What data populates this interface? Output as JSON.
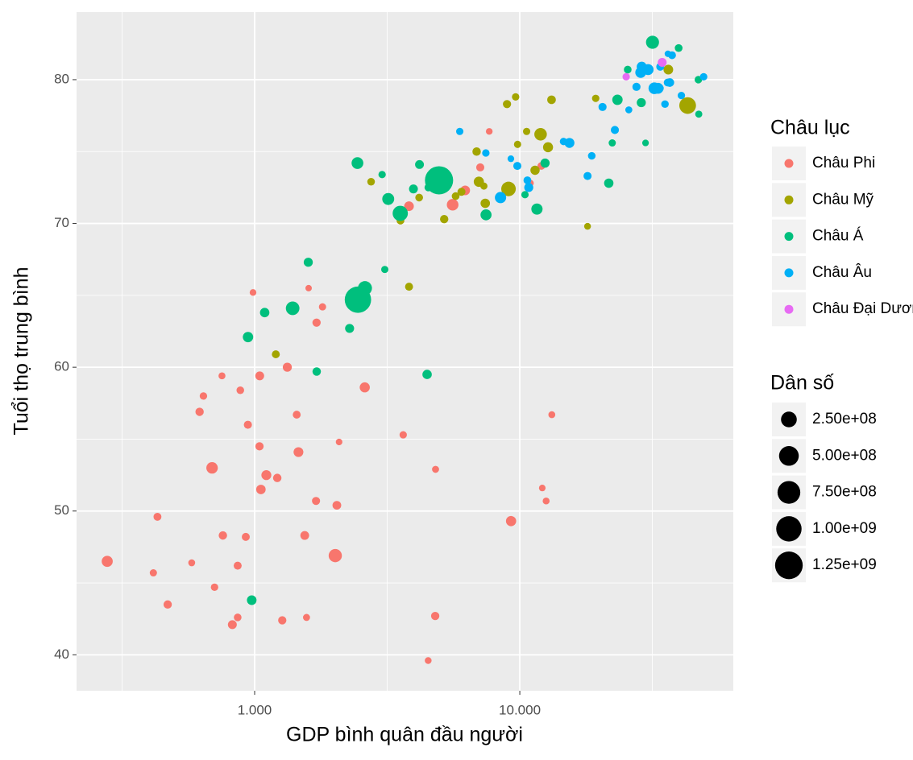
{
  "chart_data": {
    "type": "scatter",
    "x_label": "GDP bình quân đầu người",
    "y_label": "Tuổi thọ trung bình",
    "x_log": true,
    "grid": true,
    "xlim": [
      213,
      63850
    ],
    "ylim": [
      37.5,
      84.7
    ],
    "xticks": [
      {
        "value": 1000,
        "label": "1.000"
      },
      {
        "value": 10000,
        "label": "10.000"
      }
    ],
    "yticks": [
      40,
      50,
      60,
      70,
      80
    ],
    "legend": {
      "color_title": "Châu lục",
      "size_title": "Dân số",
      "sizes": [
        {
          "value": 250000000,
          "label": "2.50e+08"
        },
        {
          "value": 500000000,
          "label": "5.00e+08"
        },
        {
          "value": 750000000,
          "label": "7.50e+08"
        },
        {
          "value": 1000000000,
          "label": "1.00e+09"
        },
        {
          "value": 1250000000,
          "label": "1.25e+09"
        }
      ]
    },
    "series": [
      {
        "name": "Châu Phi",
        "color": "#F8766D",
        "x": [
          6223,
          4797,
          1441,
          12570,
          1217,
          430,
          2042,
          706,
          1704,
          986,
          278,
          3633,
          1545,
          2082,
          5581,
          12154,
          641,
          691,
          13206,
          753,
          1328,
          943,
          579,
          1463,
          1569,
          415,
          12057,
          1045,
          759,
          1043,
          1803,
          10957,
          3820,
          824,
          4811,
          620,
          2014,
          7670,
          863,
          1598,
          1712,
          863,
          926,
          9270,
          2602,
          4513,
          1107,
          883,
          7093,
          1056,
          1271,
          470
        ],
        "values": [
          72.3,
          42.7,
          56.7,
          50.7,
          52.3,
          49.6,
          50.4,
          44.7,
          50.7,
          65.2,
          46.5,
          55.3,
          48.3,
          54.8,
          71.3,
          51.6,
          58.0,
          53.0,
          56.7,
          59.4,
          60.0,
          56.0,
          46.4,
          54.1,
          42.6,
          45.7,
          74.0,
          59.4,
          48.3,
          54.5,
          64.2,
          72.8,
          71.2,
          42.1,
          52.9,
          56.9,
          46.9,
          76.4,
          46.2,
          65.5,
          63.1,
          42.6,
          48.2,
          49.3,
          58.6,
          39.6,
          52.5,
          58.4,
          73.9,
          51.5,
          42.4,
          43.5
        ],
        "sizes": [
          33300000.0,
          12400000.0,
          8100000.0,
          1600000.0,
          14300000.0,
          8400000.0,
          17700000.0,
          4400000.0,
          10200000.0,
          700000.0,
          64600000.0,
          3800000.0,
          18000000.0,
          500000.0,
          80300000.0,
          550000.0,
          4900000.0,
          76500000.0,
          1450000.0,
          1700000.0,
          22900000.0,
          9900000.0,
          1470000.0,
          35600000.0,
          2000000.0,
          3200000.0,
          6000000.0,
          19200000.0,
          13300000.0,
          12000000.0,
          3300000.0,
          1250000.0,
          33800000.0,
          20000000.0,
          2060000.0,
          12900000.0,
          135000000.0,
          800000.0,
          8900000.0,
          200000.0,
          12300000.0,
          6100000.0,
          9100000.0,
          44000000.0,
          42300000.0,
          1100000.0,
          38100000.0,
          5700000.0,
          10300000.0,
          29200000.0,
          11700000.0,
          12300000.0
        ]
      },
      {
        "name": "Châu Mỹ",
        "color": "#A3A500",
        "x": [
          12779,
          3822,
          9066,
          36319,
          13172,
          7007,
          9645,
          8948,
          6025,
          6873,
          5728,
          5186,
          1202,
          3548,
          7321,
          11978,
          2749,
          9809,
          4173,
          7409,
          19329,
          18009,
          42952,
          10611,
          11416
        ],
        "values": [
          75.3,
          65.6,
          72.4,
          80.7,
          78.6,
          72.9,
          78.8,
          78.3,
          72.2,
          75.0,
          71.9,
          70.3,
          60.9,
          70.2,
          72.6,
          76.2,
          72.9,
          75.5,
          71.8,
          71.4,
          78.7,
          69.8,
          78.2,
          76.4,
          73.7
        ],
        "sizes": [
          40300000.0,
          9100000.0,
          190000000.0,
          33400000.0,
          16300000.0,
          44200000.0,
          4100000.0,
          11400000.0,
          9300000.0,
          13800000.0,
          6900000.0,
          12600000.0,
          8500000.0,
          7500000.0,
          2800000.0,
          108700000.0,
          5700000.0,
          3200000.0,
          6700000.0,
          28700000.0,
          3900000.0,
          1060000.0,
          301000000.0,
          3400000.0,
          26100000.0
        ]
      },
      {
        "name": "Châu Á",
        "color": "#00BF7D",
        "x": [
          975,
          29796,
          1391,
          1714,
          4959,
          39725,
          2452,
          3541,
          11606,
          4471,
          25523,
          31656,
          4519,
          1593,
          23348,
          47307,
          10461,
          12452,
          3096,
          944,
          1091,
          22316,
          2606,
          3190,
          21655,
          47143,
          3970,
          4185,
          28718,
          7458,
          2442,
          3025,
          2281
        ],
        "values": [
          43.8,
          75.6,
          64.1,
          59.7,
          73.0,
          82.2,
          64.7,
          70.7,
          71.0,
          59.5,
          80.7,
          82.6,
          72.5,
          67.3,
          78.6,
          77.6,
          72.0,
          74.2,
          66.8,
          62.1,
          63.8,
          75.6,
          65.5,
          71.7,
          72.8,
          80.0,
          72.4,
          74.1,
          78.4,
          70.6,
          74.2,
          73.4,
          62.7
        ],
        "sizes": [
          31900000.0,
          700000.0,
          150000000.0,
          14100000.0,
          1318700000.0,
          7000000.0,
          1110000000.0,
          223500000.0,
          69500000.0,
          27500000.0,
          6400000.0,
          127500000.0,
          6050000.0,
          23300000.0,
          49000000.0,
          2500000.0,
          3900000.0,
          24800000.0,
          2900000.0,
          47800000.0,
          28900000.0,
          3200000.0,
          169300000.0,
          91100000.0,
          27600000.0,
          4550000.0,
          20400000.0,
          19300000.0,
          23200000.0,
          65100000.0,
          85300000.0,
          4000000.0,
          22200000.0
        ]
      },
      {
        "name": "Châu Âu",
        "color": "#00B0F6",
        "x": [
          5937,
          36126,
          33693,
          7446,
          10681,
          14619,
          22833,
          35278,
          33207,
          30470,
          32170,
          27538,
          18009,
          36181,
          40676,
          28570,
          9254,
          36798,
          49357,
          15390,
          20510,
          10808,
          9787,
          18678,
          25768,
          28821,
          33860,
          37506,
          8458,
          33203
        ],
        "values": [
          76.4,
          79.8,
          79.4,
          74.9,
          73.0,
          75.7,
          76.5,
          78.3,
          79.3,
          80.7,
          79.4,
          79.5,
          73.3,
          81.8,
          78.9,
          80.5,
          74.5,
          79.8,
          80.2,
          75.6,
          78.1,
          72.5,
          74.0,
          74.7,
          77.9,
          80.9,
          80.9,
          81.7,
          71.8,
          79.4
        ],
        "sizes": [
          3600000.0,
          8200000.0,
          10400000.0,
          4550000.0,
          7300000.0,
          4500000.0,
          10200000.0,
          5500000.0,
          5200000.0,
          61100000.0,
          82400000.0,
          10700000.0,
          9960000.0,
          300000.0,
          4100000.0,
          58100000.0,
          680000.0,
          16600000.0,
          4600000.0,
          38500000.0,
          10600000.0,
          22300000.0,
          10200000.0,
          5400000.0,
          2000000.0,
          40400000.0,
          9000000.0,
          7550000.0,
          71200000.0,
          60800000.0
        ]
      },
      {
        "name": "Châu Đại Dương",
        "color": "#E76BF3",
        "x": [
          34435,
          25185
        ],
        "values": [
          81.2,
          80.2
        ],
        "sizes": [
          20400000.0,
          4100000.0
        ]
      }
    ]
  }
}
